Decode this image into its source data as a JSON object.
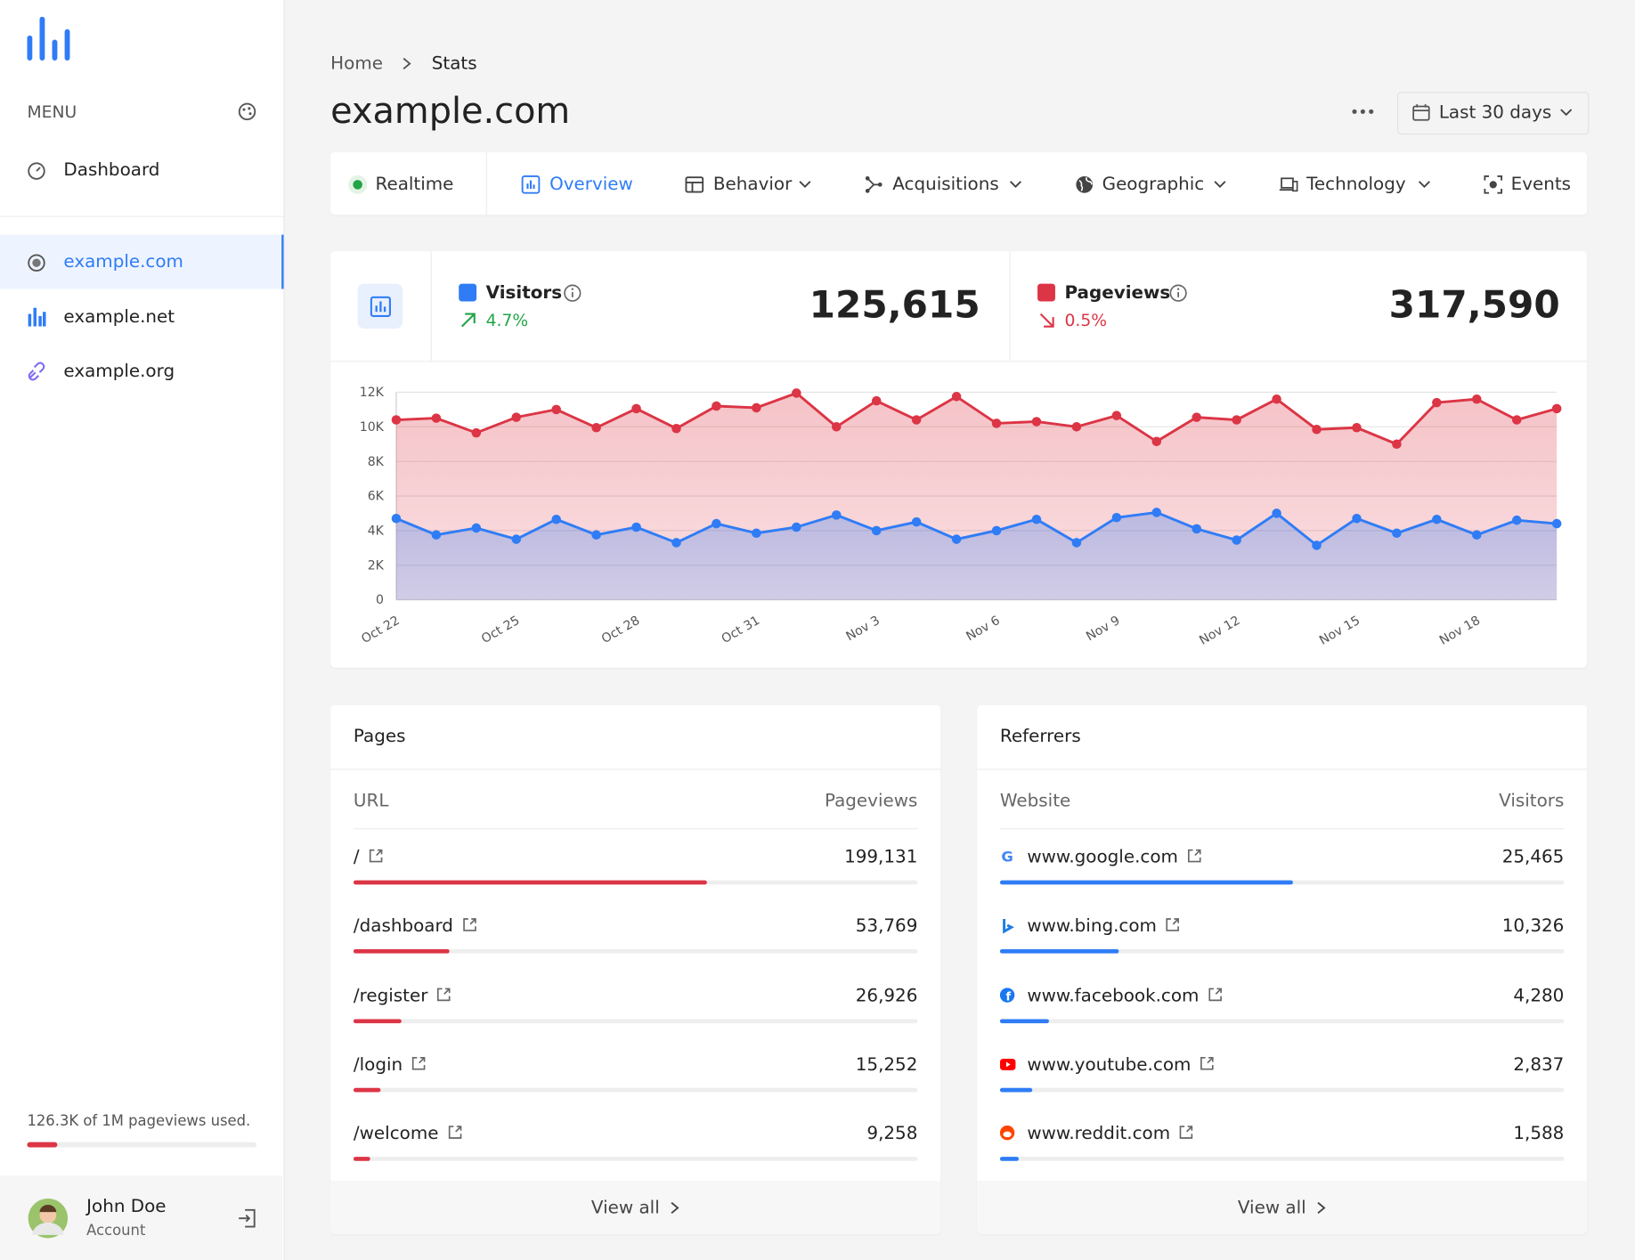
{
  "sidebar": {
    "menu_label": "MENU",
    "nav": [
      "Dashboard"
    ],
    "sites": [
      "example.com",
      "example.net",
      "example.org"
    ],
    "usage": "126.3K of 1M pageviews used.",
    "user": {
      "name": "John Doe",
      "role": "Account"
    }
  },
  "header": {
    "breadcrumb": [
      "Home",
      "Stats"
    ],
    "title": "example.com",
    "date_range": "Last 30 days"
  },
  "tabs": [
    "Realtime",
    "Overview",
    "Behavior",
    "Acquisitions",
    "Geographic",
    "Technology",
    "Events"
  ],
  "stats": [
    {
      "change": "4.7%",
      "total": "125,615"
    },
    {
      "change": "0.5%",
      "total": "317,590"
    }
  ],
  "chart_data": {
    "type": "area",
    "categories": [
      "Oct 22",
      null,
      null,
      "Oct 25",
      null,
      null,
      "Oct 28",
      null,
      null,
      "Oct 31",
      null,
      null,
      "Nov 3",
      null,
      null,
      "Nov 6",
      null,
      null,
      "Nov 9",
      null,
      null,
      "Nov 12",
      null,
      null,
      "Nov 15",
      null,
      null,
      "Nov 18",
      null,
      null
    ],
    "series": [
      {
        "name": "Pageviews",
        "color": "#dc3545",
        "values": [
          10400,
          10500,
          9650,
          10550,
          11000,
          9950,
          11050,
          9900,
          11200,
          11100,
          11950,
          10000,
          11500,
          10400,
          11750,
          10200,
          10300,
          10000,
          10650,
          9150,
          10550,
          10400,
          11600,
          9850,
          9950,
          9000,
          11400,
          11600,
          10400,
          11050
        ]
      },
      {
        "name": "Visitors",
        "color": "#2f7cf6",
        "values": [
          4700,
          3750,
          4150,
          3500,
          4650,
          3750,
          4200,
          3300,
          4400,
          3850,
          4200,
          4900,
          4000,
          4500,
          3500,
          4000,
          4650,
          3300,
          4750,
          5050,
          4100,
          3450,
          5000,
          3150,
          4700,
          3850,
          4650,
          3750,
          4600,
          4400
        ]
      }
    ],
    "ylim": [
      0,
      12000
    ],
    "yticks": [
      0,
      {
        "value": 2000,
        "label": "2K"
      },
      {
        "value": 4000,
        "label": "4K"
      },
      {
        "value": 6000,
        "label": "6K"
      },
      {
        "value": 8000,
        "label": "8K"
      },
      {
        "value": 10000,
        "label": "10K"
      },
      {
        "value": 12000,
        "label": "12K"
      }
    ],
    "grid": true
  },
  "pages": {
    "title": "Pages",
    "columns": [
      "URL",
      "Pageviews"
    ],
    "rows": [
      {
        "label": "/",
        "value": 199131,
        "value_label": "199,131"
      },
      {
        "label": "/dashboard",
        "value": 53769,
        "value_label": "53,769"
      },
      {
        "label": "/register",
        "value": 26926,
        "value_label": "26,926"
      },
      {
        "label": "/login",
        "value": 15252,
        "value_label": "15,252"
      },
      {
        "label": "/welcome",
        "value": 9258,
        "value_label": "9,258"
      }
    ],
    "more": "View all"
  },
  "referrers": {
    "title": "Referrers",
    "columns": [
      "Website",
      "Visitors"
    ],
    "rows": [
      {
        "label": "www.google.com",
        "value": 25465,
        "value_label": "25,465"
      },
      {
        "label": "www.bing.com",
        "value": 10326,
        "value_label": "10,326"
      },
      {
        "label": "www.facebook.com",
        "value": 4280,
        "value_label": "4,280"
      },
      {
        "label": "www.youtube.com",
        "value": 2837,
        "value_label": "2,837"
      },
      {
        "label": "www.reddit.com",
        "value": 1588,
        "value_label": "1,588"
      }
    ],
    "more": "View all"
  }
}
